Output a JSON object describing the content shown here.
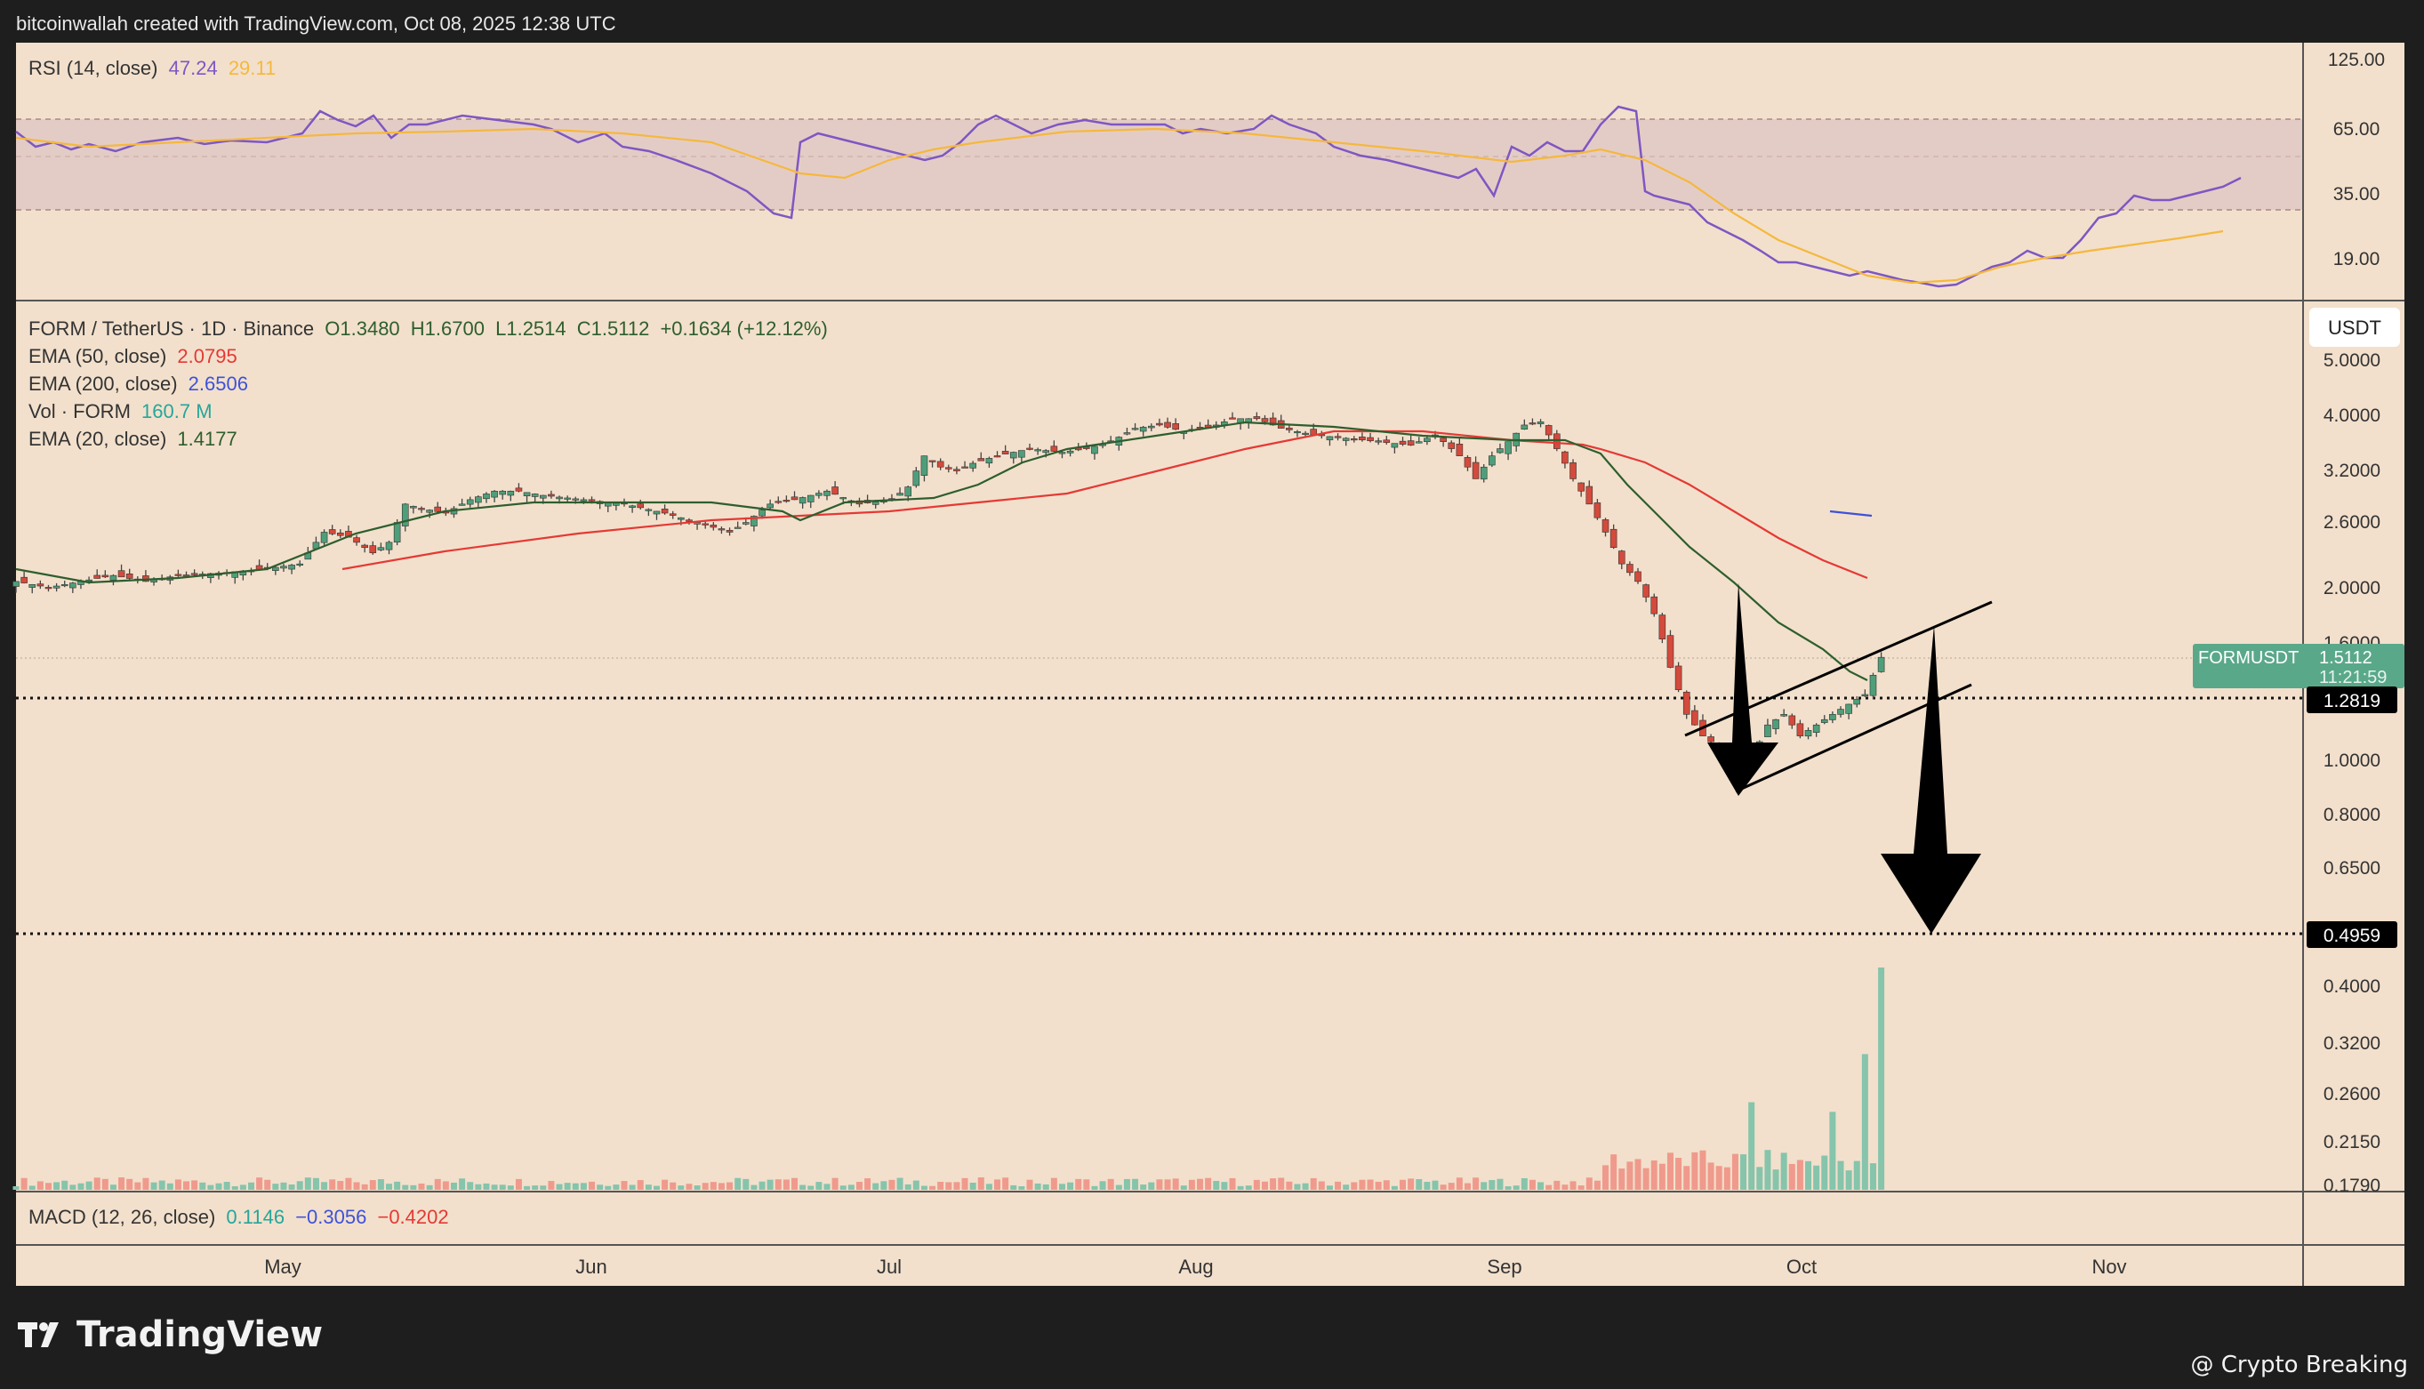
{
  "header": {
    "text": "bitcoinwallah created with TradingView.com, Oct 08, 2025 12:38 UTC"
  },
  "brand": {
    "name": "TradingView"
  },
  "credit": {
    "text": "@ Crypto Breaking"
  },
  "colors": {
    "bg": "#f2e0cc",
    "up": "#4f9e7a",
    "down": "#d44a3c",
    "ema50": "#e53935",
    "ema200": "#3f51d9",
    "ema20": "#2e5e2e",
    "rsi": "#7e57c2",
    "rsi_ma": "#f5b83d",
    "vol_up": "#86c4ac",
    "vol_down": "#ef9a8c"
  },
  "rsi": {
    "name": "RSI (14, close)",
    "value": "47.24",
    "ma_value": "29.11",
    "axis_labels": [
      "125.00",
      "65.00",
      "35.00",
      "19.00"
    ]
  },
  "main": {
    "symbol": "FORM / TetherUS · 1D · Binance",
    "o": "O1.3480",
    "h": "H1.6700",
    "l": "L1.2514",
    "c": "C1.5112",
    "change": "+0.1634 (+12.12%)",
    "ema50": {
      "label": "EMA (50, close)",
      "value": "2.0795"
    },
    "ema200": {
      "label": "EMA (200, close)",
      "value": "2.6506"
    },
    "vol": {
      "label": "Vol · FORM",
      "value": "160.7 M"
    },
    "ema20": {
      "label": "EMA (20, close)",
      "value": "1.4177"
    },
    "currency": "USDT",
    "price_label": {
      "symbol": "FORMUSDT",
      "price": "1.5112",
      "countdown": "11:21:59"
    },
    "levels": [
      "1.2819",
      "0.4959"
    ]
  },
  "macd": {
    "label": "MACD (12, 26, close)",
    "v1": "0.1146",
    "v2": "−0.3056",
    "v3": "−0.4202"
  },
  "chart_data": {
    "type": "candlestick",
    "y_scale": "log",
    "y_ticks": [
      "5.0000",
      "4.0000",
      "3.2000",
      "2.6000",
      "2.0000",
      "1.6000",
      "1.0000",
      "0.8000",
      "0.6500",
      "0.4000",
      "0.3200",
      "0.2600",
      "0.2150",
      "0.1790"
    ],
    "x_ticks": [
      "May",
      "Jun",
      "Jul",
      "Aug",
      "Sep",
      "Oct",
      "Nov"
    ],
    "close_path": [
      [
        0,
        2.05
      ],
      [
        4,
        2.0
      ],
      [
        8,
        2.05
      ],
      [
        12,
        2.1
      ],
      [
        16,
        2.05
      ],
      [
        20,
        2.1
      ],
      [
        25,
        2.12
      ],
      [
        30,
        2.15
      ],
      [
        35,
        2.2
      ],
      [
        38,
        2.5
      ],
      [
        41,
        2.45
      ],
      [
        44,
        2.3
      ],
      [
        46,
        2.4
      ],
      [
        48,
        2.8
      ],
      [
        50,
        2.75
      ],
      [
        53,
        2.7
      ],
      [
        56,
        2.85
      ],
      [
        59,
        2.95
      ],
      [
        62,
        2.95
      ],
      [
        65,
        2.9
      ],
      [
        70,
        2.85
      ],
      [
        75,
        2.8
      ],
      [
        80,
        2.7
      ],
      [
        84,
        2.6
      ],
      [
        88,
        2.5
      ],
      [
        90,
        2.6
      ],
      [
        93,
        2.8
      ],
      [
        96,
        2.85
      ],
      [
        100,
        2.95
      ],
      [
        104,
        2.8
      ],
      [
        108,
        2.85
      ],
      [
        110,
        3.0
      ],
      [
        112,
        3.4
      ],
      [
        114,
        3.25
      ],
      [
        116,
        3.2
      ],
      [
        118,
        3.3
      ],
      [
        121,
        3.4
      ],
      [
        125,
        3.5
      ],
      [
        129,
        3.45
      ],
      [
        132,
        3.5
      ],
      [
        135,
        3.6
      ],
      [
        138,
        3.8
      ],
      [
        141,
        3.85
      ],
      [
        144,
        3.75
      ],
      [
        147,
        3.8
      ],
      [
        150,
        3.95
      ],
      [
        153,
        3.95
      ],
      [
        156,
        3.8
      ],
      [
        160,
        3.7
      ],
      [
        164,
        3.65
      ],
      [
        168,
        3.6
      ],
      [
        172,
        3.55
      ],
      [
        175,
        3.7
      ],
      [
        178,
        3.4
      ],
      [
        180,
        3.1
      ],
      [
        182,
        3.4
      ],
      [
        184,
        3.6
      ],
      [
        186,
        3.85
      ],
      [
        188,
        3.9
      ],
      [
        190,
        3.5
      ],
      [
        192,
        3.1
      ],
      [
        194,
        2.8
      ],
      [
        196,
        2.5
      ],
      [
        198,
        2.2
      ],
      [
        200,
        2.05
      ],
      [
        202,
        1.8
      ],
      [
        204,
        1.45
      ],
      [
        206,
        1.2
      ],
      [
        208,
        1.1
      ],
      [
        210,
        1.05
      ],
      [
        212,
        0.95
      ],
      [
        214,
        1.0
      ],
      [
        216,
        1.15
      ],
      [
        218,
        1.2
      ],
      [
        220,
        1.1
      ],
      [
        222,
        1.15
      ],
      [
        224,
        1.2
      ],
      [
        226,
        1.25
      ],
      [
        228,
        1.3
      ],
      [
        230,
        1.51
      ]
    ],
    "volume_spikes": [
      [
        214,
        0.27
      ],
      [
        220,
        0.21
      ],
      [
        224,
        0.26
      ],
      [
        228,
        0.32
      ],
      [
        230,
        0.41
      ]
    ],
    "targets": [
      1.2819,
      0.4959
    ]
  }
}
